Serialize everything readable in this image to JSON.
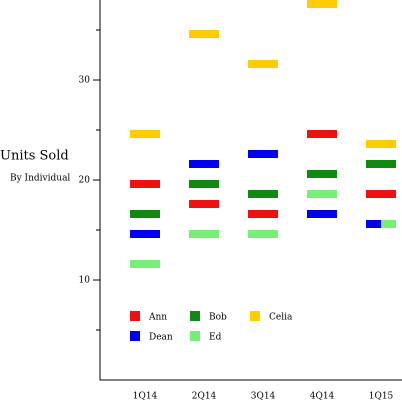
{
  "chart_data": {
    "type": "marker",
    "ylabel": "Units Sold",
    "subtitle": "By Individual",
    "categories": [
      "1Q14",
      "2Q14",
      "3Q14",
      "4Q14",
      "1Q15"
    ],
    "series": [
      {
        "name": "Ann",
        "color": "#ee1111",
        "values": [
          19.6,
          17.6,
          16.6,
          24.6,
          18.6
        ]
      },
      {
        "name": "Bob",
        "color": "#118811",
        "values": [
          16.6,
          19.6,
          18.6,
          20.6,
          21.6
        ]
      },
      {
        "name": "Celia",
        "color": "#ffcc00",
        "values": [
          24.6,
          34.6,
          31.6,
          37.6,
          23.6
        ]
      },
      {
        "name": "Dean",
        "color": "#0000ee",
        "values": [
          14.6,
          21.6,
          22.6,
          16.6,
          15.6
        ]
      },
      {
        "name": "Ed",
        "color": "#77ee77",
        "values": [
          11.6,
          14.6,
          14.6,
          18.6,
          15.6
        ]
      }
    ],
    "ylim": [
      0,
      38
    ],
    "yticks": [
      10,
      20,
      30
    ],
    "yminorticks": [
      5,
      15,
      25,
      35
    ]
  }
}
